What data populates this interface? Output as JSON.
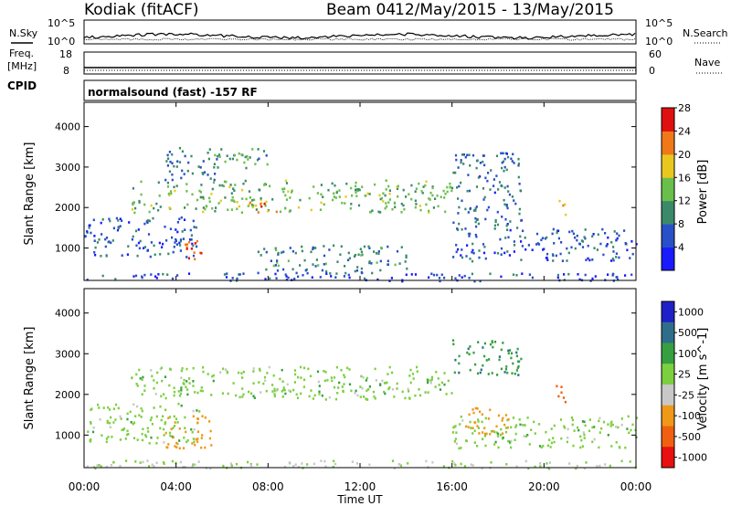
{
  "header": {
    "station": "Kodiak (fitACF)",
    "beam": "Beam 04",
    "date_range": "12/May/2015 - 13/May/2015"
  },
  "noise_panel": {
    "left_label": "N.Sky",
    "right_label": "N.Search",
    "tick_top": "10^5",
    "tick_bottom": "10^0"
  },
  "freq_panel": {
    "left_label_1": "Freq.",
    "left_label_2": "[MHz]",
    "right_label": "Nave",
    "left_tick_top": "18",
    "left_tick_bottom": "8",
    "right_tick_top": "60",
    "right_tick_bottom": "0"
  },
  "cpid": {
    "label": "CPID",
    "text": "normalsound (fast) -157 RF"
  },
  "chart_data": [
    {
      "type": "heatmap",
      "name": "power",
      "ylabel": "Slant Range [km]",
      "ylim": [
        200,
        4600
      ],
      "yticks": [
        1000,
        2000,
        3000,
        4000
      ],
      "colorbar_label": "Power [dB]",
      "colorbar_ticks": [
        "4",
        "8",
        "12",
        "16",
        "20",
        "24",
        "28"
      ],
      "colorbar_range": [
        0,
        30
      ],
      "colors": [
        "#1a1aff",
        "#2850c8",
        "#3a8a6a",
        "#6abf4b",
        "#e8c81e",
        "#f07818",
        "#e01010"
      ],
      "regions": [
        {
          "x": [
            2.0,
            16.0
          ],
          "y": [
            1900,
            2700
          ],
          "v": 14
        },
        {
          "x": [
            6.5,
            8.5
          ],
          "y": [
            1900,
            2200
          ],
          "v": 24
        },
        {
          "x": [
            3.5,
            6.0
          ],
          "y": [
            2700,
            3500
          ],
          "v": 9
        },
        {
          "x": [
            5.5,
            8.0
          ],
          "y": [
            3000,
            3500
          ],
          "v": 12
        },
        {
          "x": [
            0.0,
            5.0
          ],
          "y": [
            800,
            1800
          ],
          "v": 7
        },
        {
          "x": [
            4.3,
            5.5
          ],
          "y": [
            700,
            1200
          ],
          "v": 26
        },
        {
          "x": [
            7.5,
            14.0
          ],
          "y": [
            400,
            1100
          ],
          "v": 10
        },
        {
          "x": [
            16.0,
            24.0
          ],
          "y": [
            700,
            1500
          ],
          "v": 7
        },
        {
          "x": [
            16.0,
            19.0
          ],
          "y": [
            1500,
            3400
          ],
          "v": 8
        },
        {
          "x": [
            20.5,
            21.0
          ],
          "y": [
            1800,
            2200
          ],
          "v": 22
        },
        {
          "x": [
            0.0,
            24.0
          ],
          "y": [
            200,
            400
          ],
          "v": 6
        }
      ]
    },
    {
      "type": "heatmap",
      "name": "velocity",
      "ylabel": "Slant Range [km]",
      "ylim": [
        200,
        4600
      ],
      "yticks": [
        1000,
        2000,
        3000,
        4000
      ],
      "colorbar_label": "Velocity [m s^-1]",
      "colorbar_ticks": [
        "1000",
        "500",
        "100",
        "25",
        "-25",
        "-100",
        "-500",
        "-1000"
      ],
      "colors": [
        "#2020c8",
        "#2e6e8a",
        "#36a040",
        "#7cd040",
        "#c8c8c8",
        "#f09818",
        "#f06010",
        "#e81010"
      ],
      "regions": [
        {
          "x": [
            2.0,
            16.0
          ],
          "y": [
            1900,
            2700
          ],
          "v": 0
        },
        {
          "x": [
            0.0,
            5.0
          ],
          "y": [
            800,
            1800
          ],
          "v": 0
        },
        {
          "x": [
            3.5,
            5.5
          ],
          "y": [
            700,
            1500
          ],
          "v": -200
        },
        {
          "x": [
            16.0,
            24.0
          ],
          "y": [
            700,
            1500
          ],
          "v": 0
        },
        {
          "x": [
            16.5,
            18.5
          ],
          "y": [
            1000,
            1700
          ],
          "v": -200
        },
        {
          "x": [
            20.5,
            21.0
          ],
          "y": [
            1800,
            2300
          ],
          "v": -800
        },
        {
          "x": [
            16.0,
            19.0
          ],
          "y": [
            2500,
            3400
          ],
          "v": 80
        },
        {
          "x": [
            0.0,
            24.0
          ],
          "y": [
            200,
            400
          ],
          "v": -30
        }
      ]
    }
  ],
  "x_axis": {
    "label": "Time UT",
    "range_hours": [
      0,
      24
    ],
    "ticks": [
      "00:00",
      "04:00",
      "08:00",
      "12:00",
      "16:00",
      "20:00",
      "00:00"
    ]
  }
}
